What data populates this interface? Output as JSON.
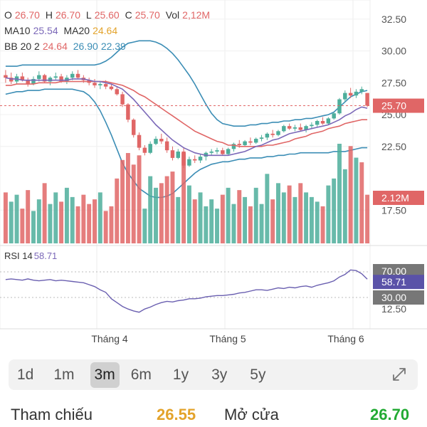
{
  "legend": {
    "ohlc": {
      "o_label": "O",
      "o": "26.70",
      "h_label": "H",
      "h": "26.70",
      "l_label": "L",
      "l": "25.60",
      "c_label": "C",
      "c": "25.70",
      "vol_label": "Vol",
      "vol": "2,12M"
    },
    "ma": {
      "ma10_label": "MA10",
      "ma10": "25.54",
      "ma20_label": "MA20",
      "ma20": "24.64"
    },
    "bb": {
      "label": "BB 20 2",
      "v1": "24.64",
      "v2": "26.90",
      "v3": "22.39"
    },
    "rsi": {
      "label": "RSI 14",
      "value": "58.71"
    }
  },
  "axis": {
    "price_ticks": [
      "32.50",
      "30.00",
      "27.50",
      "25.00",
      "22.50",
      "17.50"
    ],
    "rsi_ticks": [
      "12.50"
    ],
    "x_ticks": [
      "Tháng 4",
      "Tháng 5",
      "Tháng 6"
    ]
  },
  "badges": {
    "last_price": "25.70",
    "volume": "2.12M",
    "rsi_upper": "70.00",
    "rsi_value": "58.71",
    "rsi_lower": "30.00"
  },
  "ranges": [
    "1d",
    "1m",
    "3m",
    "6m",
    "1y",
    "3y",
    "5y"
  ],
  "active_range": "3m",
  "stats": {
    "ref_label": "Tham chiếu",
    "ref_value": "26.55",
    "open_label": "Mở cửa",
    "open_value": "26.70"
  },
  "colors": {
    "up": "#4dae9b",
    "down": "#e06666",
    "ma10": "#7b68b8",
    "ma20": "#e06666",
    "bb": "#3b8db5",
    "rsi": "#6a5fb0",
    "ref_value": "#e3a32b",
    "open_value": "#22aa33"
  },
  "chart_data": {
    "type": "candlestick",
    "candles": [
      [
        28.1,
        28.5,
        27.5,
        27.9
      ],
      [
        27.9,
        28.3,
        27.4,
        27.6
      ],
      [
        27.6,
        28.2,
        27.4,
        28.0
      ],
      [
        28.0,
        28.3,
        27.6,
        27.7
      ],
      [
        27.7,
        27.9,
        27.2,
        27.4
      ],
      [
        27.4,
        28.0,
        27.3,
        27.8
      ],
      [
        27.8,
        28.4,
        27.6,
        28.1
      ],
      [
        28.1,
        28.2,
        27.5,
        27.6
      ],
      [
        27.6,
        28.0,
        27.3,
        27.9
      ],
      [
        27.9,
        28.3,
        27.7,
        28.0
      ],
      [
        28.0,
        28.2,
        27.5,
        27.6
      ],
      [
        27.6,
        28.1,
        27.4,
        27.9
      ],
      [
        27.9,
        28.4,
        27.7,
        28.2
      ],
      [
        28.2,
        28.5,
        27.8,
        27.9
      ],
      [
        27.9,
        28.1,
        27.5,
        27.7
      ],
      [
        27.7,
        27.9,
        27.3,
        27.5
      ],
      [
        27.5,
        27.8,
        27.1,
        27.3
      ],
      [
        27.3,
        27.6,
        27.0,
        27.4
      ],
      [
        27.4,
        27.7,
        27.0,
        27.2
      ],
      [
        27.2,
        27.4,
        26.9,
        27.0
      ],
      [
        27.0,
        27.2,
        26.5,
        26.6
      ],
      [
        26.6,
        26.8,
        25.6,
        25.8
      ],
      [
        25.8,
        25.9,
        24.4,
        24.6
      ],
      [
        24.6,
        24.7,
        23.2,
        23.4
      ],
      [
        23.4,
        23.6,
        22.2,
        22.4
      ],
      [
        22.4,
        22.6,
        21.8,
        22.0
      ],
      [
        22.0,
        22.9,
        21.9,
        22.7
      ],
      [
        22.7,
        23.3,
        22.6,
        23.1
      ],
      [
        23.1,
        23.5,
        22.7,
        22.9
      ],
      [
        22.9,
        23.2,
        22.0,
        22.2
      ],
      [
        22.2,
        22.5,
        21.4,
        21.6
      ],
      [
        21.6,
        22.3,
        21.5,
        22.1
      ],
      [
        22.1,
        22.4,
        20.8,
        21.0
      ],
      [
        21.0,
        21.7,
        20.9,
        21.5
      ],
      [
        21.5,
        21.8,
        21.2,
        21.4
      ],
      [
        21.4,
        21.9,
        21.2,
        21.7
      ],
      [
        21.7,
        22.1,
        21.4,
        22.0
      ],
      [
        22.0,
        22.3,
        21.8,
        22.1
      ],
      [
        22.1,
        22.4,
        21.9,
        22.2
      ],
      [
        22.2,
        22.4,
        21.8,
        21.9
      ],
      [
        21.9,
        22.4,
        21.8,
        22.3
      ],
      [
        22.3,
        22.8,
        22.1,
        22.7
      ],
      [
        22.7,
        23.0,
        22.4,
        22.6
      ],
      [
        22.6,
        23.0,
        22.5,
        22.9
      ],
      [
        22.9,
        23.2,
        22.6,
        22.8
      ],
      [
        22.8,
        23.2,
        22.7,
        23.1
      ],
      [
        23.1,
        23.4,
        22.9,
        23.2
      ],
      [
        23.2,
        23.6,
        23.0,
        23.5
      ],
      [
        23.5,
        23.8,
        23.2,
        23.4
      ],
      [
        23.4,
        23.8,
        23.3,
        23.7
      ],
      [
        23.7,
        24.2,
        23.6,
        24.1
      ],
      [
        24.1,
        24.3,
        23.8,
        23.9
      ],
      [
        23.9,
        24.2,
        23.7,
        24.0
      ],
      [
        24.0,
        24.3,
        23.7,
        23.8
      ],
      [
        23.8,
        24.2,
        23.6,
        24.1
      ],
      [
        24.1,
        24.4,
        23.9,
        24.2
      ],
      [
        24.2,
        24.6,
        24.0,
        24.5
      ],
      [
        24.5,
        24.8,
        24.2,
        24.3
      ],
      [
        24.3,
        24.8,
        24.2,
        24.7
      ],
      [
        24.7,
        25.2,
        24.6,
        25.1
      ],
      [
        25.1,
        26.3,
        25.0,
        26.2
      ],
      [
        26.2,
        26.9,
        26.0,
        26.7
      ],
      [
        26.7,
        27.1,
        26.3,
        26.5
      ],
      [
        26.5,
        27.0,
        26.3,
        26.8
      ],
      [
        26.8,
        27.2,
        26.6,
        27.0
      ],
      [
        26.7,
        26.7,
        25.6,
        25.7
      ]
    ],
    "volume": [
      [
        2.2,
        0
      ],
      [
        1.8,
        1
      ],
      [
        2.1,
        1
      ],
      [
        1.5,
        0
      ],
      [
        2.3,
        0
      ],
      [
        1.4,
        1
      ],
      [
        1.9,
        1
      ],
      [
        2.6,
        0
      ],
      [
        1.7,
        1
      ],
      [
        2.2,
        1
      ],
      [
        1.8,
        0
      ],
      [
        2.4,
        1
      ],
      [
        2.0,
        1
      ],
      [
        1.6,
        0
      ],
      [
        2.1,
        0
      ],
      [
        1.7,
        0
      ],
      [
        1.9,
        0
      ],
      [
        2.2,
        1
      ],
      [
        1.4,
        0
      ],
      [
        1.6,
        0
      ],
      [
        2.8,
        0
      ],
      [
        3.6,
        0
      ],
      [
        3.9,
        0
      ],
      [
        3.4,
        0
      ],
      [
        3.8,
        0
      ],
      [
        1.5,
        1
      ],
      [
        2.9,
        1
      ],
      [
        2.4,
        1
      ],
      [
        2.6,
        0
      ],
      [
        2.9,
        0
      ],
      [
        3.1,
        0
      ],
      [
        2.0,
        1
      ],
      [
        3.9,
        0
      ],
      [
        2.5,
        1
      ],
      [
        1.9,
        0
      ],
      [
        2.2,
        1
      ],
      [
        1.6,
        1
      ],
      [
        1.9,
        1
      ],
      [
        1.5,
        1
      ],
      [
        2.1,
        0
      ],
      [
        2.4,
        1
      ],
      [
        1.7,
        1
      ],
      [
        2.3,
        0
      ],
      [
        2.0,
        1
      ],
      [
        1.6,
        0
      ],
      [
        2.4,
        1
      ],
      [
        1.7,
        1
      ],
      [
        3.0,
        1
      ],
      [
        1.9,
        0
      ],
      [
        2.6,
        1
      ],
      [
        2.2,
        1
      ],
      [
        2.5,
        0
      ],
      [
        2.0,
        1
      ],
      [
        2.6,
        0
      ],
      [
        2.2,
        1
      ],
      [
        2.0,
        1
      ],
      [
        1.8,
        1
      ],
      [
        1.6,
        0
      ],
      [
        2.5,
        1
      ],
      [
        2.8,
        1
      ],
      [
        4.3,
        1
      ],
      [
        3.2,
        1
      ],
      [
        4.2,
        0
      ],
      [
        3.7,
        1
      ],
      [
        3.5,
        0
      ],
      [
        2.1,
        0
      ]
    ],
    "ma10": [
      27.9,
      27.8,
      27.8,
      27.7,
      27.7,
      27.7,
      27.7,
      27.7,
      27.7,
      27.7,
      27.7,
      27.7,
      27.8,
      27.8,
      27.8,
      27.7,
      27.6,
      27.6,
      27.5,
      27.4,
      27.2,
      27.0,
      26.6,
      26.2,
      25.7,
      25.2,
      24.7,
      24.2,
      23.8,
      23.4,
      23.0,
      22.7,
      22.4,
      22.2,
      22.0,
      21.9,
      21.8,
      21.8,
      21.8,
      21.8,
      21.8,
      21.9,
      22.0,
      22.1,
      22.3,
      22.5,
      22.6,
      22.8,
      23.0,
      23.1,
      23.3,
      23.5,
      23.6,
      23.7,
      23.8,
      23.9,
      24.0,
      24.1,
      24.2,
      24.4,
      24.6,
      24.9,
      25.1,
      25.4,
      25.6,
      25.5
    ],
    "ma20": [
      27.3,
      27.3,
      27.4,
      27.4,
      27.4,
      27.4,
      27.5,
      27.5,
      27.5,
      27.5,
      27.6,
      27.6,
      27.6,
      27.6,
      27.6,
      27.6,
      27.6,
      27.6,
      27.6,
      27.5,
      27.4,
      27.3,
      27.1,
      26.9,
      26.6,
      26.4,
      26.1,
      25.8,
      25.5,
      25.2,
      24.9,
      24.6,
      24.3,
      24.0,
      23.7,
      23.5,
      23.3,
      23.1,
      22.9,
      22.8,
      22.6,
      22.6,
      22.5,
      22.5,
      22.5,
      22.5,
      22.5,
      22.6,
      22.6,
      22.7,
      22.8,
      22.9,
      23.1,
      23.2,
      23.3,
      23.5,
      23.6,
      23.7,
      23.9,
      24.0,
      24.1,
      24.3,
      24.4,
      24.5,
      24.6,
      24.6
    ],
    "bb_upper": [
      28.8,
      28.8,
      28.8,
      28.9,
      28.9,
      28.9,
      28.9,
      28.9,
      28.9,
      28.9,
      28.9,
      28.9,
      28.9,
      28.9,
      28.9,
      28.9,
      28.9,
      29.0,
      29.2,
      29.5,
      29.9,
      30.3,
      30.6,
      30.7,
      30.8,
      30.8,
      30.8,
      30.7,
      30.5,
      30.2,
      29.8,
      29.3,
      28.7,
      28.1,
      27.4,
      26.6,
      25.8,
      25.1,
      24.6,
      24.3,
      24.2,
      24.1,
      24.1,
      24.1,
      24.2,
      24.2,
      24.3,
      24.3,
      24.4,
      24.4,
      24.5,
      24.5,
      24.6,
      24.6,
      24.7,
      24.7,
      24.8,
      24.9,
      25.0,
      25.2,
      25.6,
      26.0,
      26.4,
      26.6,
      26.8,
      26.9
    ],
    "bb_lower": [
      26.6,
      26.7,
      26.8,
      26.8,
      26.9,
      26.9,
      26.9,
      27.0,
      27.0,
      27.0,
      27.0,
      27.0,
      27.0,
      26.9,
      26.8,
      26.5,
      26.0,
      25.3,
      24.4,
      23.4,
      22.3,
      21.2,
      20.4,
      19.8,
      19.2,
      18.9,
      18.6,
      18.5,
      18.5,
      18.6,
      18.8,
      19.2,
      19.6,
      20.0,
      20.4,
      20.7,
      20.9,
      21.1,
      21.2,
      21.3,
      21.3,
      21.4,
      21.5,
      21.5,
      21.6,
      21.6,
      21.6,
      21.7,
      21.7,
      21.8,
      21.8,
      21.9,
      21.9,
      22.0,
      22.0,
      22.0,
      22.0,
      22.0,
      22.0,
      22.1,
      22.1,
      22.1,
      22.2,
      22.3,
      22.4,
      22.4
    ],
    "rsi": [
      58,
      59,
      58,
      57,
      59,
      57,
      56,
      57,
      58,
      56,
      57,
      56,
      55,
      54,
      53,
      50,
      47,
      42,
      38,
      28,
      22,
      16,
      12,
      9,
      7,
      12,
      15,
      19,
      22,
      24,
      23,
      25,
      26,
      28,
      28,
      29,
      31,
      32,
      33,
      33,
      34,
      35,
      37,
      38,
      40,
      42,
      42,
      41,
      43,
      45,
      44,
      46,
      45,
      47,
      48,
      46,
      49,
      51,
      53,
      56,
      62,
      66,
      73,
      72,
      67,
      58.71
    ],
    "price_axis": {
      "min": 15.0,
      "max": 34.0
    },
    "rsi_axis": {
      "min": 0,
      "max": 100
    },
    "volume_max": 4.3
  }
}
